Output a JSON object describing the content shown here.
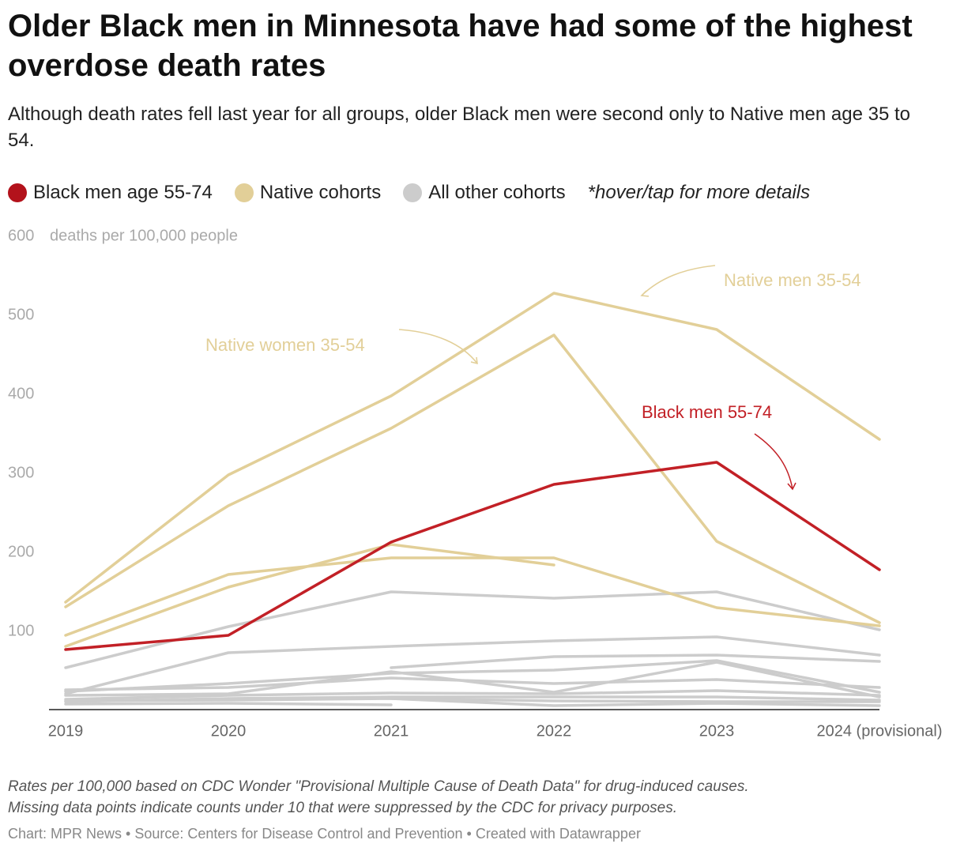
{
  "chart_data": {
    "type": "line",
    "title": "Older Black men in Minnesota have had some of the highest overdose death rates",
    "subtitle": "Although death rates fell last year for all groups, older Black men were second only to Native men age 35 to 54.",
    "legend": [
      {
        "label": "Black men age 55-74",
        "color": "#b3121b"
      },
      {
        "label": "Native cohorts",
        "color": "#e2cf98"
      },
      {
        "label": "All other cohorts",
        "color": "#cccccc"
      }
    ],
    "legend_note": "*hover/tap for more details",
    "y_label": "deaths per 100,000 people",
    "categories": [
      "2019",
      "2020",
      "2021",
      "2022",
      "2023",
      "2024 (provisional)"
    ],
    "ylim": [
      0,
      600
    ],
    "yticks": [
      100,
      200,
      300,
      400,
      500,
      600
    ],
    "series": [
      {
        "color": "#cccccc",
        "values": [
          53,
          105,
          149,
          141,
          149,
          101
        ]
      },
      {
        "color": "#cccccc",
        "values": [
          20,
          72,
          80,
          87,
          92,
          69
        ]
      },
      {
        "color": "#cccccc",
        "values": [
          null,
          null,
          53,
          67,
          69,
          61
        ]
      },
      {
        "color": "#cccccc",
        "values": [
          23,
          33,
          46,
          50,
          62,
          22
        ]
      },
      {
        "color": "#cccccc",
        "values": [
          25,
          28,
          40,
          33,
          38,
          28
        ]
      },
      {
        "color": "#cccccc",
        "values": [
          18,
          20,
          48,
          22,
          60,
          16
        ]
      },
      {
        "color": "#cccccc",
        "values": [
          13,
          18,
          21,
          20,
          24,
          18
        ]
      },
      {
        "color": "#cccccc",
        "values": [
          10,
          14,
          16,
          16,
          16,
          12
        ]
      },
      {
        "color": "#cccccc",
        "values": [
          7,
          8,
          6,
          null,
          null,
          null
        ]
      },
      {
        "color": "#cccccc",
        "values": [
          null,
          null,
          14,
          5,
          8,
          5
        ]
      },
      {
        "color": "#cccccc",
        "values": [
          11,
          12,
          14,
          11,
          10,
          10
        ]
      },
      {
        "color": "#e2cf98",
        "values": [
          80,
          155,
          209,
          183,
          null,
          null
        ]
      },
      {
        "color": "#e2cf98",
        "values": [
          94,
          171,
          192,
          192,
          129,
          106
        ]
      },
      {
        "color": "#e2cf98",
        "values": [
          130,
          258,
          356,
          474,
          213,
          110
        ]
      },
      {
        "color": "#e2cf98",
        "values": [
          136,
          297,
          397,
          527,
          481,
          342
        ]
      },
      {
        "color": "#c22026",
        "values": [
          76,
          94,
          212,
          285,
          313,
          177
        ]
      }
    ],
    "annotations": [
      {
        "text": "Native men 35-54",
        "color": "#e2cf98"
      },
      {
        "text": "Native women 35-54",
        "color": "#e2cf98"
      },
      {
        "text": "Black men 55-74",
        "color": "#c22026"
      }
    ],
    "notes": [
      "Rates per 100,000 based on CDC Wonder \"Provisional Multiple Cause of Death Data\" for drug-induced causes.",
      "Missing data points indicate counts under 10 that were suppressed by the CDC for privacy purposes."
    ],
    "footer": "Chart: MPR News • Source: Centers for Disease Control and Prevention • Created with Datawrapper"
  }
}
